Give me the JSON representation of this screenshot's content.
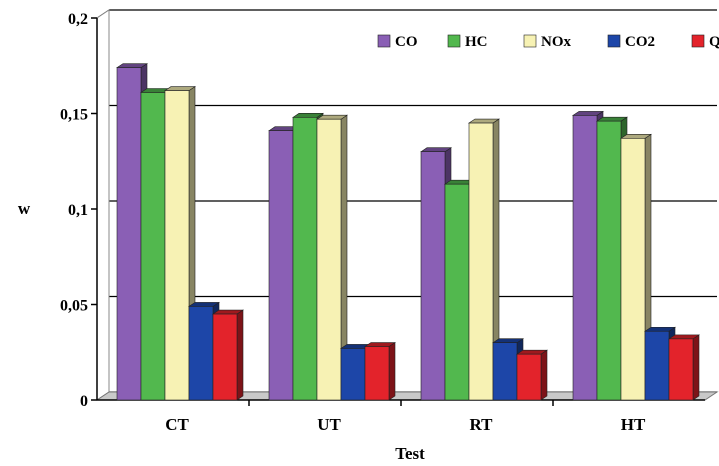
{
  "chart_data": {
    "type": "bar",
    "title": "",
    "xlabel": "Test",
    "ylabel": "w",
    "ylim": [
      0,
      0.2
    ],
    "yticks": [
      {
        "value": 0,
        "label": "0"
      },
      {
        "value": 0.05,
        "label": "0,05"
      },
      {
        "value": 0.1,
        "label": "0,1"
      },
      {
        "value": 0.15,
        "label": "0,15"
      },
      {
        "value": 0.2,
        "label": "0,2"
      }
    ],
    "grid": true,
    "legend_position": "top-right",
    "categories": [
      "CT",
      "UT",
      "RT",
      "HT"
    ],
    "series": [
      {
        "name": "CO",
        "color": "#8a5fb5",
        "values": [
          0.174,
          0.141,
          0.13,
          0.149
        ]
      },
      {
        "name": "HC",
        "color": "#52b84e",
        "values": [
          0.161,
          0.148,
          0.113,
          0.146
        ]
      },
      {
        "name": "NOx",
        "color": "#f7f2b4",
        "values": [
          0.162,
          0.147,
          0.145,
          0.137
        ]
      },
      {
        "name": "CO2",
        "color": "#1d46a8",
        "values": [
          0.049,
          0.027,
          0.03,
          0.036
        ]
      },
      {
        "name": "Q",
        "color": "#e3232b",
        "values": [
          0.045,
          0.028,
          0.024,
          0.032
        ]
      }
    ]
  }
}
